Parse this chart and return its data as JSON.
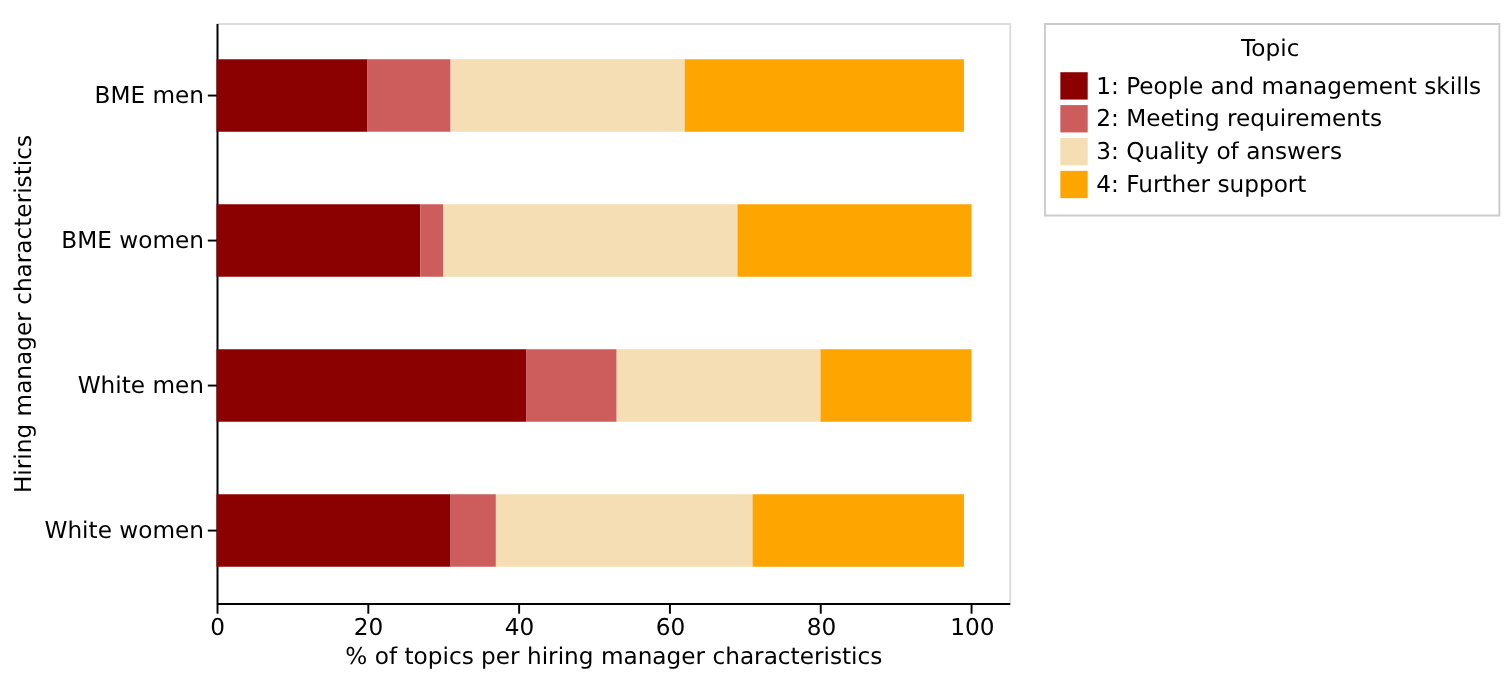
{
  "chart_data": {
    "type": "bar",
    "orientation": "horizontal",
    "stacked": true,
    "xlabel": "% of topics per hiring manager characteristics",
    "ylabel": "Hiring manager characteristics",
    "legend_title": "Topic",
    "categories": [
      "BME men",
      "BME women",
      "White men",
      "White women"
    ],
    "series": [
      {
        "name": "1: People and management skills",
        "color": "#8b0000",
        "values": [
          20,
          27,
          41,
          31
        ]
      },
      {
        "name": "2: Meeting requirements",
        "color": "#cd5c5c",
        "values": [
          11,
          3,
          12,
          6
        ]
      },
      {
        "name": "3: Quality of answers",
        "color": "#f5deb3",
        "values": [
          31,
          39,
          27,
          34
        ]
      },
      {
        "name": "4: Further support",
        "color": "#ffa500",
        "values": [
          37,
          31,
          20,
          28
        ]
      }
    ],
    "xlim": [
      0,
      105
    ],
    "xticks": [
      0,
      20,
      40,
      60,
      80,
      100
    ],
    "grid": false,
    "legend": "right"
  }
}
